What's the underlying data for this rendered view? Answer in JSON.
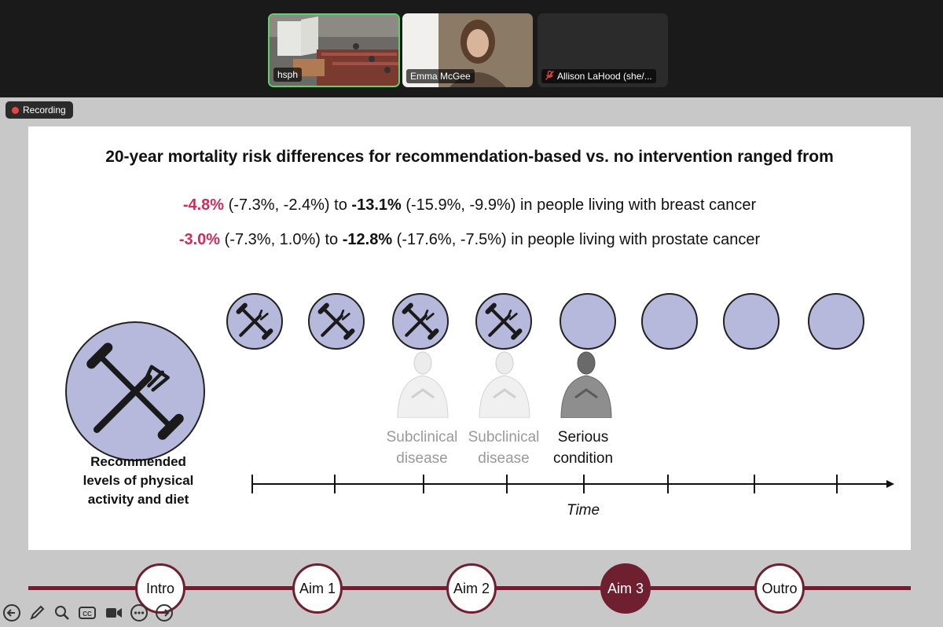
{
  "meeting": {
    "participants": [
      {
        "name": "hsph",
        "muted": false
      },
      {
        "name": "Emma McGee",
        "muted": false
      },
      {
        "name": "Allison LaHood (she/...",
        "muted": true
      }
    ],
    "recording_label": "Recording"
  },
  "slide": {
    "headline": "20-year mortality risk differences for recommendation-based vs. no intervention ranged from",
    "stats": [
      {
        "low": "-4.8%",
        "low_ci": "(-7.3%, -2.4%)",
        "to": "to",
        "high": "-13.1%",
        "high_ci": "(-15.9%, -9.9%)",
        "suffix": "in people living with breast cancer"
      },
      {
        "low": "-3.0%",
        "low_ci": "(-7.3%, 1.0%)",
        "to": "to",
        "high": "-12.8%",
        "high_ci": "(-17.6%, -7.5%)",
        "suffix": "in people living with prostate cancer"
      }
    ],
    "intervention_label": "Recommended levels of physical activity and diet",
    "stages": [
      {
        "line1": "Subclinical",
        "line2": "disease"
      },
      {
        "line1": "Subclinical",
        "line2": "disease"
      },
      {
        "line1": "Serious",
        "line2": "condition"
      }
    ],
    "time_label": "Time"
  },
  "nav": {
    "items": [
      "Intro",
      "Aim 1",
      "Aim 2",
      "Aim 3",
      "Outro"
    ],
    "active": "Aim 3"
  },
  "colors": {
    "accent_red": "#cc2d5a",
    "nav_maroon": "#6e2031",
    "circle_fill": "#b7b9dc",
    "speaker_border": "#5fd36a"
  },
  "icons": [
    "dumbbell-fork-icon",
    "arrow-left-icon",
    "pen-icon",
    "zoom-icon",
    "cc-icon",
    "video-icon",
    "more-icon",
    "arrow-right-icon",
    "mic-muted-icon",
    "record-dot-icon"
  ]
}
